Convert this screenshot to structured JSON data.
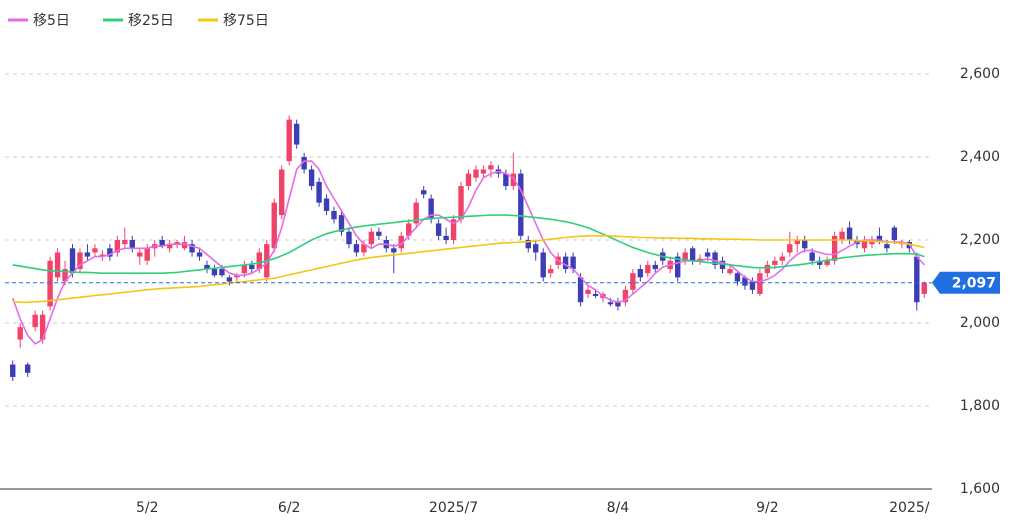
{
  "chart_data": {
    "type": "candlestick",
    "categories": [
      null,
      null,
      null,
      null,
      null,
      null,
      null,
      null,
      null,
      null,
      null,
      null,
      null,
      null,
      null,
      null,
      null,
      null,
      "5/2",
      null,
      null,
      null,
      null,
      null,
      null,
      null,
      null,
      null,
      null,
      null,
      null,
      null,
      null,
      null,
      null,
      null,
      null,
      "6/2",
      null,
      null,
      null,
      null,
      null,
      null,
      null,
      null,
      null,
      null,
      null,
      null,
      null,
      null,
      null,
      null,
      null,
      null,
      null,
      null,
      null,
      "2025/7",
      null,
      null,
      null,
      null,
      null,
      null,
      null,
      null,
      null,
      null,
      null,
      null,
      null,
      null,
      null,
      null,
      null,
      null,
      null,
      null,
      null,
      "8/4",
      null,
      null,
      null,
      null,
      null,
      null,
      null,
      null,
      null,
      null,
      null,
      null,
      null,
      null,
      null,
      null,
      null,
      null,
      null,
      "9/2",
      null,
      null,
      null,
      null,
      null,
      null,
      null,
      null,
      null,
      null,
      null,
      null,
      null,
      null,
      null,
      null,
      null,
      null,
      "2025/",
      null,
      null
    ],
    "ohlc": [
      [
        1900,
        1910,
        1860,
        1870
      ],
      [
        1960,
        2000,
        1940,
        1990
      ],
      [
        1900,
        1905,
        1870,
        1880
      ],
      [
        1990,
        2030,
        1980,
        2020
      ],
      [
        1960,
        2030,
        1950,
        2020
      ],
      [
        2040,
        2160,
        2030,
        2150
      ],
      [
        2110,
        2180,
        2100,
        2170
      ],
      [
        2100,
        2150,
        2090,
        2130
      ],
      [
        2180,
        2190,
        2110,
        2120
      ],
      [
        2130,
        2180,
        2120,
        2170
      ],
      [
        2170,
        2190,
        2150,
        2160
      ],
      [
        2170,
        2190,
        2160,
        2180
      ],
      [
        2160,
        2175,
        2150,
        2165
      ],
      [
        2180,
        2190,
        2150,
        2160
      ],
      [
        2170,
        2210,
        2160,
        2200
      ],
      [
        2190,
        2230,
        2180,
        2200
      ],
      [
        2200,
        2210,
        2170,
        2180
      ],
      [
        2160,
        2180,
        2140,
        2170
      ],
      [
        2150,
        2190,
        2140,
        2180
      ],
      [
        2180,
        2200,
        2160,
        2190
      ],
      [
        2200,
        2210,
        2180,
        2185
      ],
      [
        2180,
        2200,
        2170,
        2190
      ],
      [
        2190,
        2200,
        2180,
        2195
      ],
      [
        2180,
        2210,
        2175,
        2195
      ],
      [
        2190,
        2200,
        2160,
        2170
      ],
      [
        2170,
        2180,
        2150,
        2160
      ],
      [
        2140,
        2150,
        2120,
        2130
      ],
      [
        2130,
        2140,
        2110,
        2115
      ],
      [
        2130,
        2140,
        2110,
        2115
      ],
      [
        2110,
        2115,
        2090,
        2100
      ],
      [
        2110,
        2120,
        2100,
        2115
      ],
      [
        2120,
        2150,
        2110,
        2140
      ],
      [
        2140,
        2150,
        2120,
        2130
      ],
      [
        2130,
        2180,
        2120,
        2170
      ],
      [
        2110,
        2200,
        2100,
        2190
      ],
      [
        2180,
        2300,
        2170,
        2290
      ],
      [
        2260,
        2380,
        2250,
        2370
      ],
      [
        2390,
        2500,
        2380,
        2490
      ],
      [
        2480,
        2490,
        2420,
        2430
      ],
      [
        2400,
        2410,
        2360,
        2370
      ],
      [
        2370,
        2380,
        2320,
        2330
      ],
      [
        2340,
        2350,
        2280,
        2290
      ],
      [
        2300,
        2310,
        2260,
        2270
      ],
      [
        2270,
        2280,
        2240,
        2250
      ],
      [
        2260,
        2270,
        2210,
        2220
      ],
      [
        2220,
        2230,
        2180,
        2190
      ],
      [
        2190,
        2200,
        2160,
        2170
      ],
      [
        2170,
        2200,
        2160,
        2190
      ],
      [
        2190,
        2230,
        2180,
        2220
      ],
      [
        2220,
        2230,
        2200,
        2210
      ],
      [
        2200,
        2210,
        2170,
        2180
      ],
      [
        2180,
        2190,
        2120,
        2170
      ],
      [
        2180,
        2220,
        2170,
        2210
      ],
      [
        2210,
        2250,
        2200,
        2240
      ],
      [
        2240,
        2300,
        2230,
        2290
      ],
      [
        2320,
        2330,
        2300,
        2310
      ],
      [
        2300,
        2310,
        2240,
        2250
      ],
      [
        2240,
        2250,
        2200,
        2210
      ],
      [
        2210,
        2230,
        2190,
        2200
      ],
      [
        2200,
        2260,
        2190,
        2250
      ],
      [
        2250,
        2340,
        2240,
        2330
      ],
      [
        2330,
        2370,
        2320,
        2360
      ],
      [
        2350,
        2380,
        2340,
        2370
      ],
      [
        2360,
        2380,
        2350,
        2370
      ],
      [
        2370,
        2390,
        2350,
        2380
      ],
      [
        2370,
        2380,
        2350,
        2360
      ],
      [
        2360,
        2370,
        2320,
        2330
      ],
      [
        2330,
        2410,
        2320,
        2360
      ],
      [
        2360,
        2370,
        2200,
        2210
      ],
      [
        2200,
        2210,
        2170,
        2180
      ],
      [
        2190,
        2200,
        2150,
        2170
      ],
      [
        2170,
        2180,
        2100,
        2110
      ],
      [
        2120,
        2140,
        2110,
        2130
      ],
      [
        2140,
        2170,
        2130,
        2160
      ],
      [
        2160,
        2170,
        2120,
        2130
      ],
      [
        2160,
        2170,
        2120,
        2130
      ],
      [
        2110,
        2120,
        2040,
        2050
      ],
      [
        2070,
        2090,
        2060,
        2080
      ],
      [
        2070,
        2080,
        2060,
        2065
      ],
      [
        2060,
        2075,
        2050,
        2070
      ],
      [
        2050,
        2060,
        2040,
        2045
      ],
      [
        2050,
        2060,
        2030,
        2040
      ],
      [
        2050,
        2090,
        2040,
        2080
      ],
      [
        2080,
        2130,
        2070,
        2120
      ],
      [
        2130,
        2140,
        2100,
        2110
      ],
      [
        2120,
        2150,
        2110,
        2140
      ],
      [
        2140,
        2150,
        2120,
        2130
      ],
      [
        2170,
        2180,
        2140,
        2150
      ],
      [
        2130,
        2160,
        2120,
        2150
      ],
      [
        2160,
        2170,
        2100,
        2110
      ],
      [
        2150,
        2180,
        2140,
        2170
      ],
      [
        2180,
        2185,
        2140,
        2150
      ],
      [
        2150,
        2165,
        2140,
        2155
      ],
      [
        2170,
        2180,
        2150,
        2160
      ],
      [
        2170,
        2175,
        2130,
        2140
      ],
      [
        2150,
        2160,
        2120,
        2130
      ],
      [
        2120,
        2140,
        2115,
        2130
      ],
      [
        2120,
        2125,
        2090,
        2100
      ],
      [
        2110,
        2115,
        2080,
        2090
      ],
      [
        2100,
        2110,
        2070,
        2080
      ],
      [
        2070,
        2130,
        2065,
        2120
      ],
      [
        2120,
        2150,
        2110,
        2140
      ],
      [
        2140,
        2160,
        2130,
        2150
      ],
      [
        2150,
        2170,
        2140,
        2160
      ],
      [
        2170,
        2220,
        2160,
        2190
      ],
      [
        2190,
        2210,
        2170,
        2200
      ],
      [
        2200,
        2210,
        2170,
        2180
      ],
      [
        2170,
        2180,
        2140,
        2150
      ],
      [
        2150,
        2160,
        2130,
        2140
      ],
      [
        2140,
        2160,
        2135,
        2150
      ],
      [
        2150,
        2220,
        2140,
        2210
      ],
      [
        2200,
        2230,
        2190,
        2220
      ],
      [
        2230,
        2245,
        2190,
        2200
      ],
      [
        2200,
        2210,
        2180,
        2190
      ],
      [
        2180,
        2210,
        2170,
        2200
      ],
      [
        2190,
        2210,
        2180,
        2200
      ],
      [
        2210,
        2230,
        2190,
        2195
      ],
      [
        2190,
        2200,
        2170,
        2180
      ],
      [
        2230,
        2235,
        2190,
        2200
      ],
      [
        2190,
        2200,
        2180,
        2195
      ],
      [
        2195,
        2200,
        2170,
        2180
      ],
      [
        2160,
        2170,
        2030,
        2050
      ],
      [
        2070,
        2100,
        2060,
        2097
      ]
    ],
    "up_color": "#f0436a",
    "down_color": "#3d3db4",
    "series": [
      {
        "name": "移5日",
        "color": "#e66ce6",
        "values": [
          2060,
          2010,
          1970,
          1950,
          1960,
          2010,
          2060,
          2100,
          2120,
          2140,
          2150,
          2160,
          2160,
          2165,
          2175,
          2180,
          2180,
          2180,
          2180,
          2185,
          2185,
          2190,
          2190,
          2190,
          2185,
          2180,
          2165,
          2150,
          2135,
          2120,
          2115,
          2115,
          2120,
          2130,
          2145,
          2175,
          2230,
          2300,
          2370,
          2390,
          2390,
          2370,
          2330,
          2300,
          2270,
          2240,
          2210,
          2190,
          2180,
          2190,
          2190,
          2185,
          2190,
          2210,
          2230,
          2250,
          2260,
          2260,
          2250,
          2240,
          2250,
          2280,
          2320,
          2350,
          2360,
          2365,
          2360,
          2350,
          2320,
          2280,
          2240,
          2200,
          2170,
          2150,
          2140,
          2130,
          2110,
          2090,
          2080,
          2065,
          2055,
          2050,
          2055,
          2070,
          2085,
          2100,
          2120,
          2135,
          2140,
          2145,
          2150,
          2150,
          2150,
          2155,
          2150,
          2145,
          2140,
          2125,
          2110,
          2100,
          2100,
          2105,
          2115,
          2130,
          2150,
          2165,
          2175,
          2175,
          2170,
          2165,
          2165,
          2175,
          2185,
          2195,
          2200,
          2200,
          2200,
          2195,
          2195,
          2195,
          2190,
          2160,
          2140
        ]
      },
      {
        "name": "移25日",
        "color": "#2fcf7a",
        "values": [
          2140,
          2137,
          2134,
          2131,
          2128,
          2126,
          2125,
          2124,
          2123,
          2122,
          2122,
          2121,
          2120,
          2120,
          2120,
          2120,
          2120,
          2120,
          2120,
          2120,
          2120,
          2121,
          2122,
          2124,
          2126,
          2128,
          2130,
          2132,
          2134,
          2136,
          2138,
          2140,
          2142,
          2145,
          2150,
          2155,
          2162,
          2170,
          2180,
          2190,
          2200,
          2208,
          2215,
          2220,
          2224,
          2228,
          2231,
          2234,
          2236,
          2238,
          2240,
          2242,
          2244,
          2246,
          2248,
          2250,
          2252,
          2253,
          2254,
          2255,
          2256,
          2257,
          2258,
          2259,
          2260,
          2260,
          2260,
          2259,
          2258,
          2256,
          2254,
          2252,
          2250,
          2247,
          2244,
          2240,
          2235,
          2230,
          2222,
          2214,
          2206,
          2198,
          2190,
          2182,
          2176,
          2170,
          2165,
          2160,
          2157,
          2154,
          2152,
          2150,
          2148,
          2146,
          2144,
          2142,
          2140,
          2138,
          2136,
          2134,
          2133,
          2133,
          2134,
          2136,
          2138,
          2140,
          2142,
          2145,
          2148,
          2151,
          2154,
          2157,
          2159,
          2161,
          2163,
          2164,
          2165,
          2166,
          2167,
          2167,
          2167,
          2166,
          2160
        ]
      },
      {
        "name": "移75日",
        "color": "#f5c518",
        "values": [
          2052,
          2050,
          2050,
          2051,
          2052,
          2054,
          2056,
          2058,
          2060,
          2062,
          2064,
          2066,
          2068,
          2070,
          2072,
          2074,
          2076,
          2078,
          2080,
          2082,
          2083,
          2084,
          2085,
          2086,
          2087,
          2088,
          2090,
          2092,
          2094,
          2096,
          2098,
          2100,
          2102,
          2104,
          2106,
          2108,
          2112,
          2116,
          2120,
          2124,
          2128,
          2132,
          2136,
          2140,
          2144,
          2148,
          2152,
          2155,
          2158,
          2160,
          2162,
          2164,
          2166,
          2168,
          2170,
          2172,
          2174,
          2176,
          2178,
          2180,
          2182,
          2184,
          2186,
          2188,
          2190,
          2192,
          2193,
          2194,
          2195,
          2196,
          2198,
          2200,
          2202,
          2204,
          2206,
          2208,
          2209,
          2210,
          2210,
          2210,
          2210,
          2209,
          2208,
          2207,
          2206,
          2206,
          2205,
          2205,
          2205,
          2204,
          2204,
          2204,
          2203,
          2203,
          2203,
          2202,
          2202,
          2202,
          2201,
          2201,
          2200,
          2200,
          2200,
          2200,
          2200,
          2200,
          2200,
          2200,
          2200,
          2200,
          2200,
          2200,
          2200,
          2199,
          2198,
          2197,
          2196,
          2195,
          2194,
          2192,
          2190,
          2186,
          2182
        ]
      }
    ],
    "ylim": [
      1600,
      2600
    ],
    "yticks": [
      {
        "value": 1600,
        "label": "1,600"
      },
      {
        "value": 1800,
        "label": "1,800"
      },
      {
        "value": 2000,
        "label": "2,000"
      },
      {
        "value": 2200,
        "label": "2,200"
      },
      {
        "value": 2400,
        "label": "2,400"
      },
      {
        "value": 2600,
        "label": "2,600"
      }
    ],
    "grid": true,
    "last_price": {
      "value": 2097,
      "label": "2,097"
    },
    "last_price_color": "#1f6fe0"
  }
}
